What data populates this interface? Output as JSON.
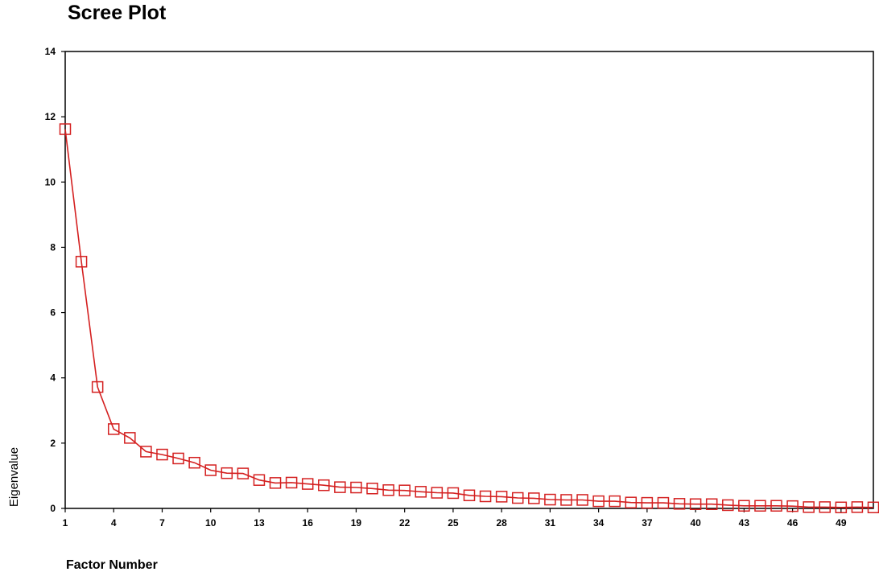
{
  "chart_data": {
    "type": "line",
    "title": "Scree Plot",
    "xlabel": "Factor Number",
    "ylabel": "Eigenvalue",
    "xlim": [
      1,
      51
    ],
    "ylim": [
      0,
      14
    ],
    "x_ticks": [
      1,
      4,
      7,
      10,
      13,
      16,
      19,
      22,
      25,
      28,
      31,
      34,
      37,
      40,
      43,
      46,
      49
    ],
    "y_ticks": [
      0,
      2,
      4,
      6,
      8,
      10,
      12,
      14
    ],
    "grid": false,
    "line_color": "#d42020",
    "marker": "square",
    "x": [
      1,
      2,
      3,
      4,
      5,
      6,
      7,
      8,
      9,
      10,
      11,
      12,
      13,
      14,
      15,
      16,
      17,
      18,
      19,
      20,
      21,
      22,
      23,
      24,
      25,
      26,
      27,
      28,
      29,
      30,
      31,
      32,
      33,
      34,
      35,
      36,
      37,
      38,
      39,
      40,
      41,
      42,
      43,
      44,
      45,
      46,
      47,
      48,
      49,
      50,
      51
    ],
    "values": [
      11.62,
      7.56,
      3.72,
      2.43,
      2.16,
      1.74,
      1.65,
      1.53,
      1.4,
      1.17,
      1.08,
      1.07,
      0.87,
      0.78,
      0.79,
      0.75,
      0.71,
      0.65,
      0.64,
      0.61,
      0.56,
      0.55,
      0.51,
      0.48,
      0.47,
      0.4,
      0.37,
      0.36,
      0.32,
      0.31,
      0.27,
      0.26,
      0.26,
      0.22,
      0.22,
      0.18,
      0.17,
      0.17,
      0.14,
      0.13,
      0.13,
      0.1,
      0.08,
      0.08,
      0.08,
      0.07,
      0.04,
      0.04,
      0.03,
      0.04,
      0.03
    ]
  }
}
